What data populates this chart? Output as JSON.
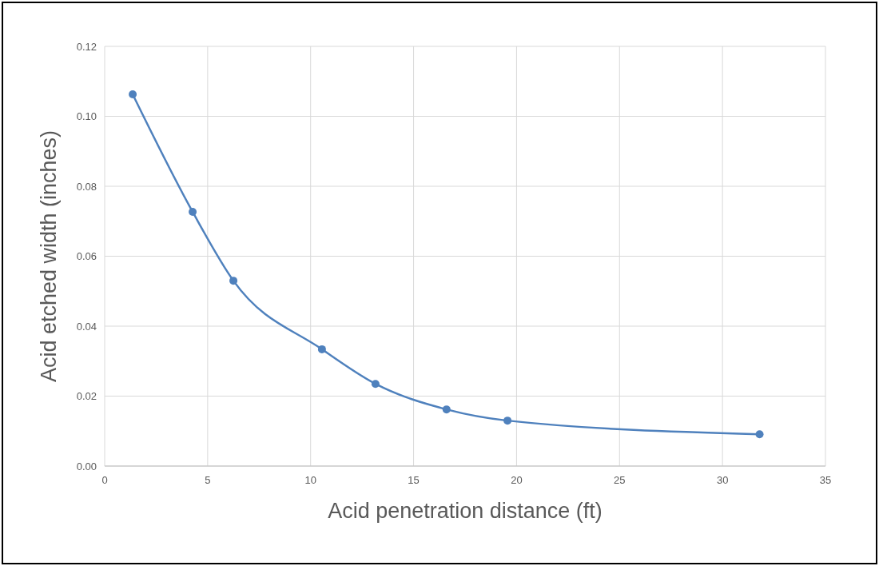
{
  "chart_data": {
    "type": "line",
    "xlabel": "Acid penetration distance (ft)",
    "ylabel": "Acid etched width (inches)",
    "x": [
      1.36,
      4.27,
      6.25,
      10.55,
      13.15,
      16.6,
      19.56,
      31.8
    ],
    "series": [
      {
        "color": "#4f81bd",
        "values": [
          0.1063,
          0.0727,
          0.053,
          0.0334,
          0.0235,
          0.0162,
          0.013,
          0.0091
        ]
      }
    ],
    "xlim": [
      0,
      35
    ],
    "xticks": [
      0,
      5,
      10,
      15,
      20,
      25,
      30,
      35
    ],
    "ylim": [
      0,
      0.12
    ],
    "yticks": [
      {
        "value": 0,
        "label": "0.00"
      },
      {
        "value": 0.02,
        "label": "0.02"
      },
      {
        "value": 0.04,
        "label": "0.04"
      },
      {
        "value": 0.06,
        "label": "0.06"
      },
      {
        "value": 0.08,
        "label": "0.08"
      },
      {
        "value": 0.1,
        "label": "0.10"
      },
      {
        "value": 0.12,
        "label": "0.12"
      }
    ],
    "grid": true,
    "marker": "circle",
    "line_style": "solid"
  }
}
